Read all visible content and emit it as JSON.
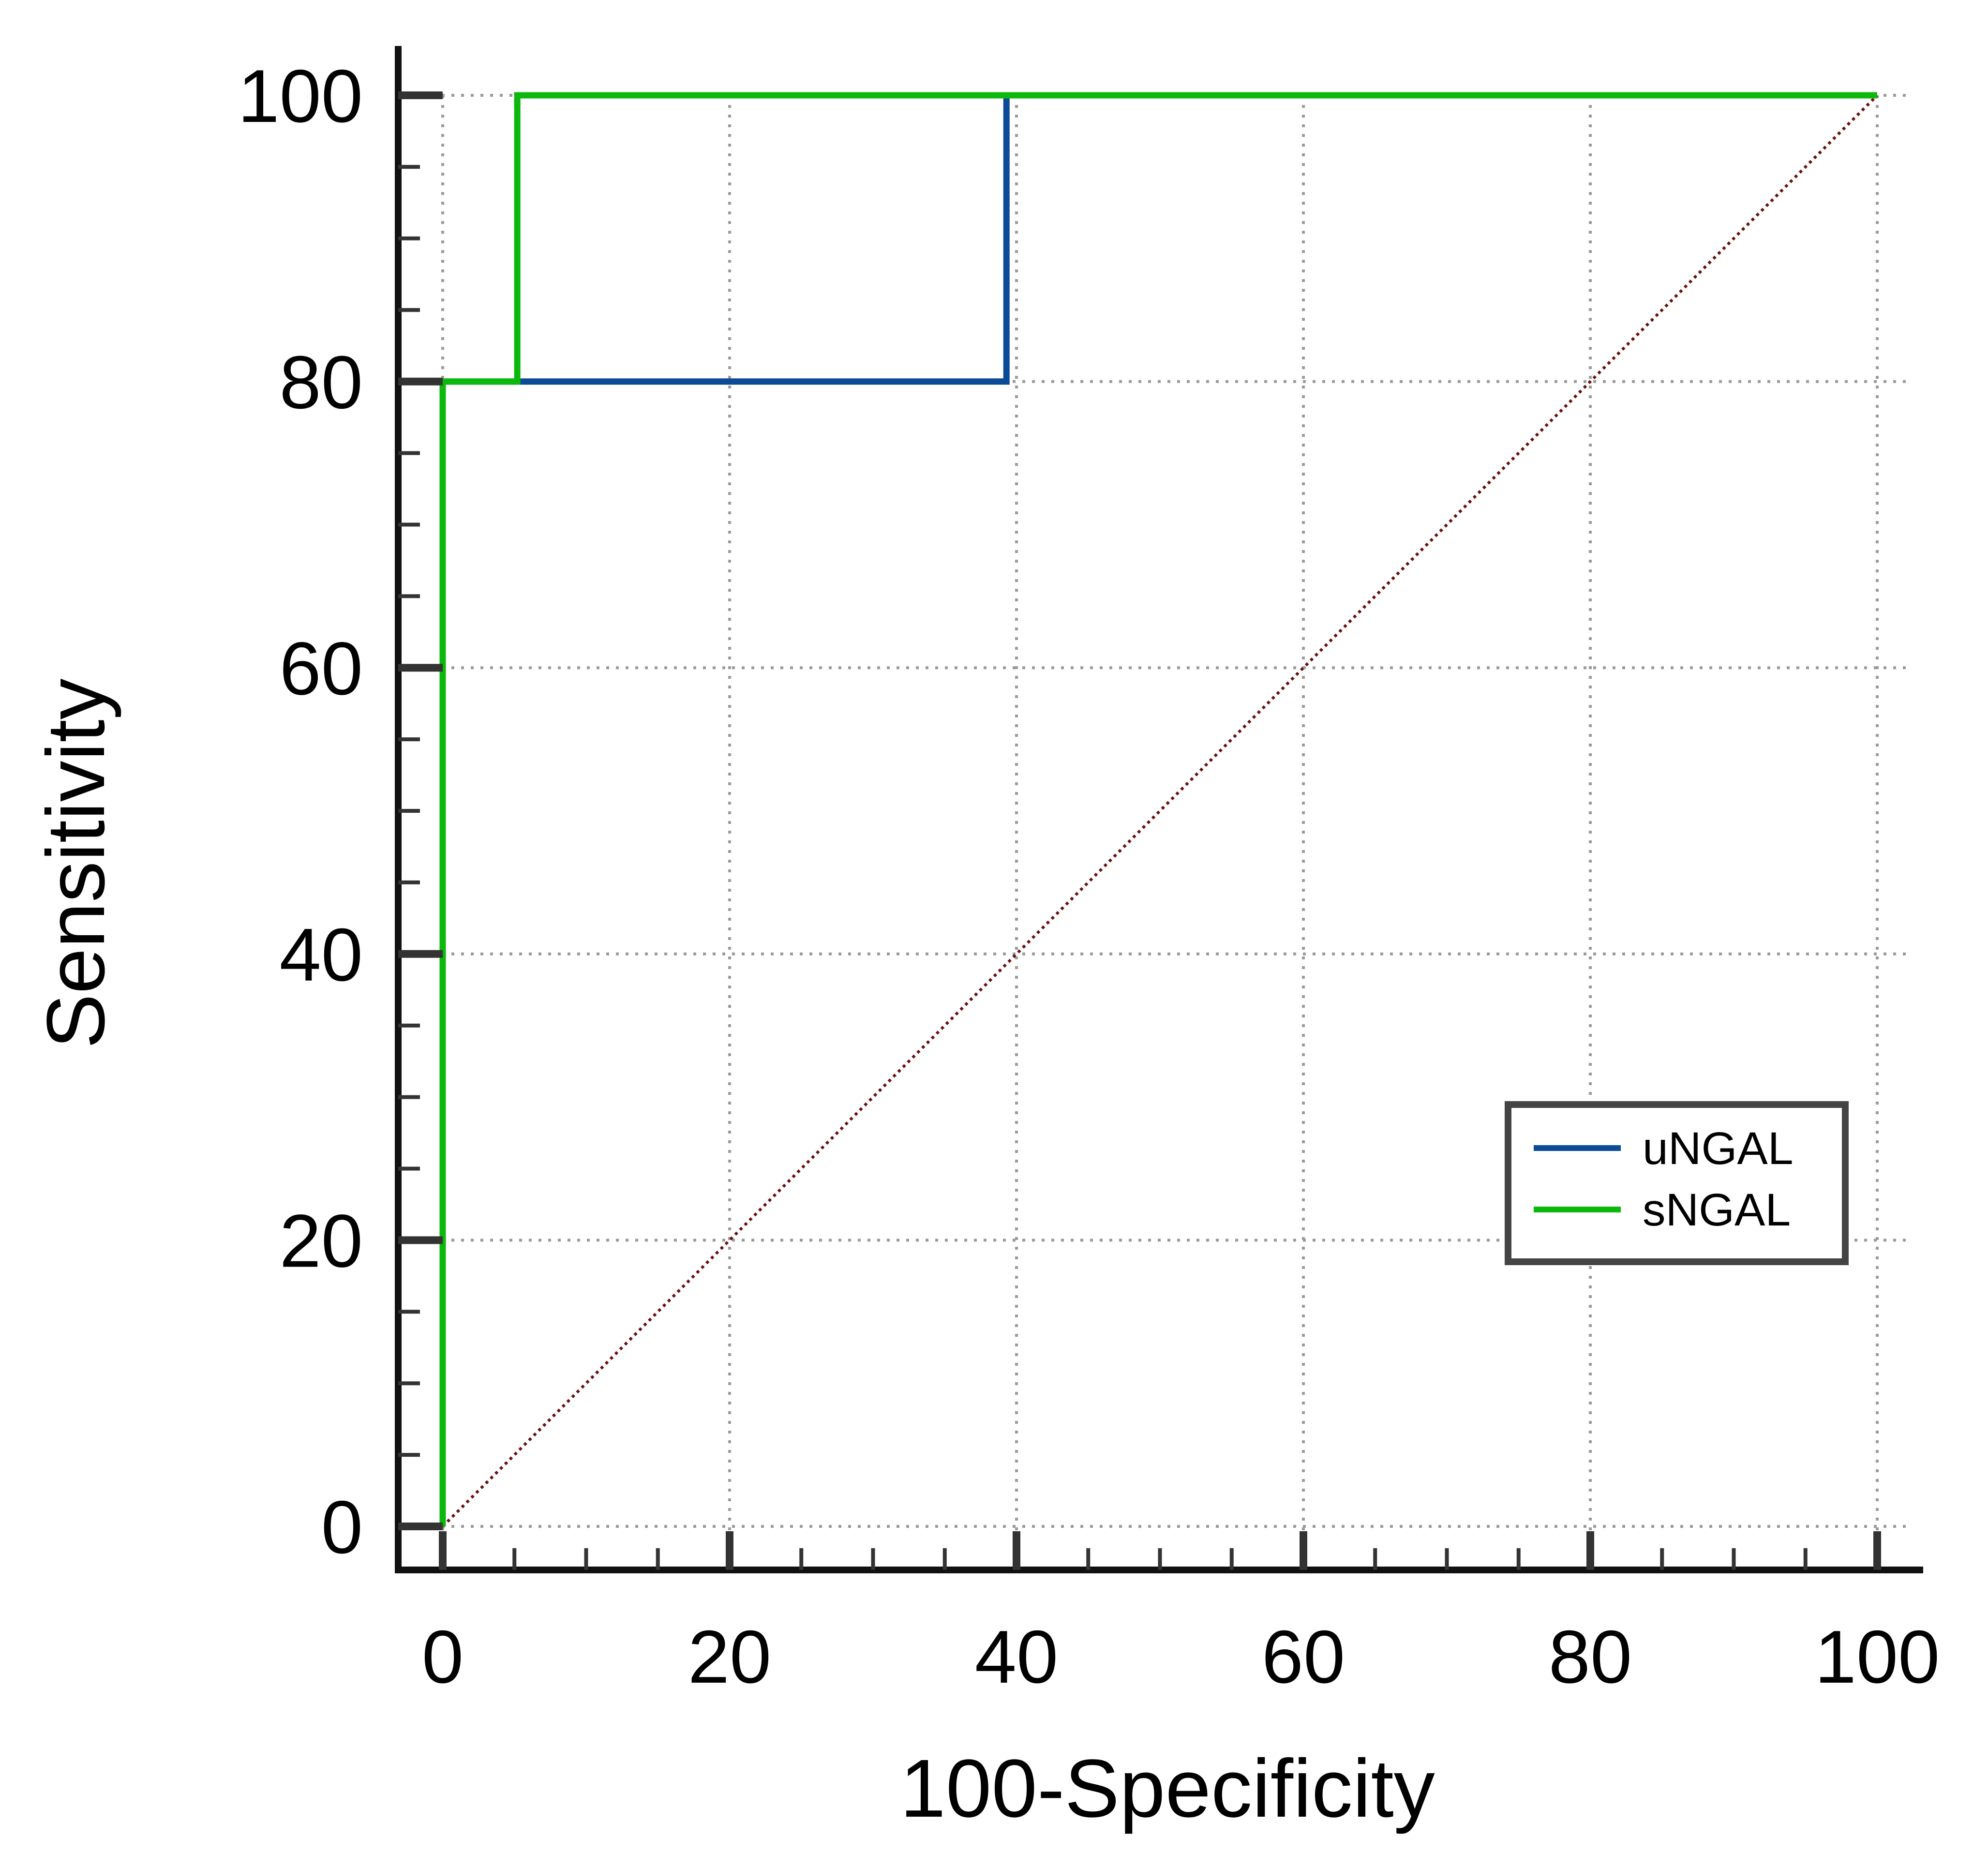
{
  "chart_data": {
    "type": "line",
    "xlabel": "100-Specificity",
    "ylabel": "Sensitivity",
    "xlim": [
      0,
      100
    ],
    "ylim": [
      0,
      100
    ],
    "x_ticks": [
      "0",
      "20",
      "40",
      "60",
      "80",
      "100"
    ],
    "y_ticks": [
      "0",
      "20",
      "40",
      "60",
      "80",
      "100"
    ],
    "minor_step": 5,
    "grid": true,
    "legend_position": "lower-right",
    "series": [
      {
        "name": "uNGAL",
        "color": "#0a4a96",
        "x": [
          0,
          0,
          39.3,
          39.3,
          100
        ],
        "y": [
          0,
          80,
          80,
          100,
          100
        ]
      },
      {
        "name": "sNGAL",
        "color": "#0cb80c",
        "x": [
          0,
          0,
          5.2,
          5.2,
          100
        ],
        "y": [
          0,
          80,
          80,
          100,
          100
        ]
      }
    ],
    "reference_line": {
      "color": "#6b0f0f",
      "x": [
        0,
        100
      ],
      "y": [
        0,
        100
      ]
    }
  }
}
